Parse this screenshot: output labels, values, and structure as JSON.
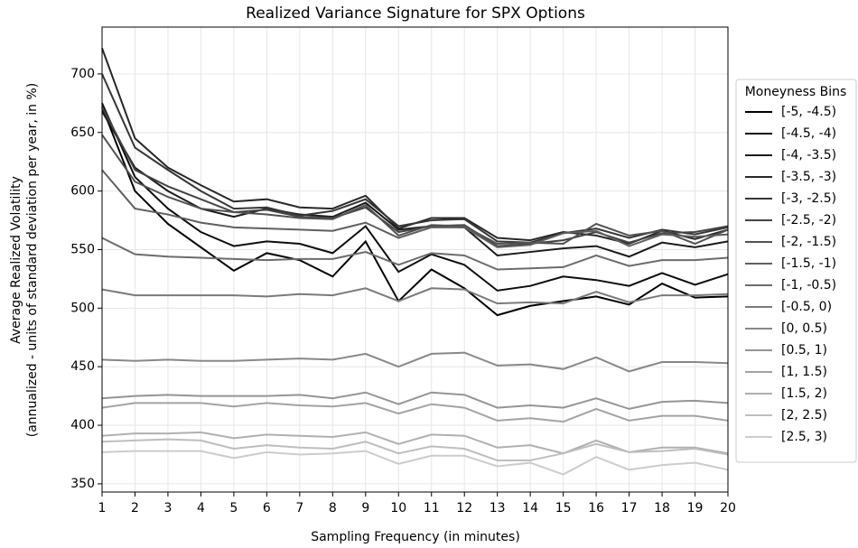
{
  "chart_data": {
    "type": "line",
    "title": "Realized Variance Signature for SPX Options",
    "xlabel": "Sampling Frequency (in minutes)",
    "ylabel": [
      "Average Realized Volatility",
      "(annualized - units of standard deviation per year, in %)"
    ],
    "legend_title": "Moneyness Bins",
    "legend": "right",
    "grid": true,
    "x": [
      1,
      2,
      3,
      4,
      5,
      6,
      7,
      8,
      9,
      10,
      11,
      12,
      13,
      14,
      15,
      16,
      17,
      18,
      19,
      20
    ],
    "xlim": [
      1,
      20
    ],
    "xticks": [
      1,
      2,
      3,
      4,
      5,
      6,
      7,
      8,
      9,
      10,
      11,
      12,
      13,
      14,
      15,
      16,
      17,
      18,
      19,
      20
    ],
    "ylim": [
      343,
      740
    ],
    "yticks": [
      350,
      400,
      450,
      500,
      550,
      600,
      650,
      700
    ],
    "series": [
      {
        "name": "[-5, -4.5)",
        "color": "#000000",
        "values": [
          672,
          600,
          572,
          552,
          532,
          547,
          541,
          527,
          557,
          506,
          533,
          517,
          494,
          502,
          506,
          510,
          503,
          521,
          509,
          510
        ]
      },
      {
        "name": "[-4.5, -4)",
        "color": "#0d0d0d",
        "values": [
          675,
          612,
          585,
          565,
          553,
          557,
          555,
          547,
          570,
          531,
          546,
          537,
          515,
          519,
          527,
          524,
          519,
          530,
          520,
          529
        ]
      },
      {
        "name": "[-4, -3.5)",
        "color": "#1b1b1b",
        "values": [
          668,
          620,
          600,
          585,
          578,
          585,
          580,
          578,
          590,
          567,
          570,
          569,
          545,
          548,
          551,
          553,
          544,
          556,
          552,
          557
        ]
      },
      {
        "name": "[-3.5, -3)",
        "color": "#282828",
        "values": [
          722,
          645,
          620,
          605,
          591,
          593,
          586,
          585,
          596,
          568,
          577,
          577,
          560,
          558,
          565,
          562,
          555,
          566,
          559,
          567
        ]
      },
      {
        "name": "[-3, -2.5)",
        "color": "#363636",
        "values": [
          700,
          637,
          618,
          600,
          585,
          586,
          579,
          583,
          593,
          570,
          575,
          576,
          557,
          556,
          564,
          568,
          560,
          567,
          563,
          569
        ]
      },
      {
        "name": "[-2.5, -2)",
        "color": "#444444",
        "values": [
          672,
          618,
          604,
          593,
          582,
          584,
          578,
          577,
          586,
          565,
          570,
          571,
          553,
          555,
          558,
          565,
          556,
          564,
          565,
          570
        ]
      },
      {
        "name": "[-2, -1.5)",
        "color": "#515151",
        "values": [
          648,
          608,
          595,
          585,
          582,
          580,
          577,
          576,
          588,
          562,
          571,
          570,
          555,
          556,
          555,
          572,
          562,
          566,
          555,
          567
        ]
      },
      {
        "name": "[-1.5, -1)",
        "color": "#5f5f5f",
        "values": [
          618,
          585,
          580,
          573,
          569,
          568,
          567,
          566,
          573,
          560,
          569,
          569,
          552,
          554,
          564,
          566,
          553,
          563,
          561,
          563
        ]
      },
      {
        "name": "[-1, -0.5)",
        "color": "#6c6c6c",
        "values": [
          560,
          546,
          544,
          543,
          542,
          541,
          542,
          542,
          548,
          537,
          547,
          545,
          533,
          534,
          535,
          545,
          536,
          541,
          541,
          543
        ]
      },
      {
        "name": "[-0.5, 0)",
        "color": "#7a7a7a",
        "values": [
          516,
          511,
          511,
          511,
          511,
          510,
          512,
          511,
          517,
          506,
          517,
          516,
          504,
          505,
          504,
          514,
          505,
          511,
          511,
          512
        ]
      },
      {
        "name": "[0, 0.5)",
        "color": "#888888",
        "values": [
          456,
          455,
          456,
          455,
          455,
          456,
          457,
          456,
          461,
          450,
          461,
          462,
          451,
          452,
          448,
          458,
          446,
          454,
          454,
          453
        ]
      },
      {
        "name": "[0.5, 1)",
        "color": "#959595",
        "values": [
          423,
          425,
          426,
          425,
          425,
          425,
          426,
          423,
          428,
          418,
          428,
          426,
          415,
          417,
          415,
          423,
          414,
          420,
          421,
          419
        ]
      },
      {
        "name": "[1, 1.5)",
        "color": "#a3a3a3",
        "values": [
          415,
          419,
          419,
          419,
          416,
          419,
          417,
          416,
          419,
          410,
          418,
          415,
          404,
          406,
          403,
          414,
          404,
          408,
          408,
          404
        ]
      },
      {
        "name": "[1.5, 2)",
        "color": "#b0b0b0",
        "values": [
          391,
          393,
          393,
          394,
          389,
          392,
          391,
          390,
          394,
          384,
          392,
          391,
          381,
          383,
          376,
          387,
          377,
          381,
          381,
          376
        ]
      },
      {
        "name": "[2, 2.5)",
        "color": "#bebebe",
        "values": [
          386,
          387,
          388,
          387,
          380,
          383,
          381,
          380,
          386,
          376,
          382,
          380,
          370,
          370,
          376,
          384,
          377,
          378,
          380,
          375
        ]
      },
      {
        "name": "[2.5, 3)",
        "color": "#cccccc",
        "values": [
          377,
          378,
          378,
          378,
          372,
          377,
          375,
          376,
          378,
          367,
          374,
          374,
          365,
          368,
          358,
          373,
          362,
          366,
          368,
          362
        ]
      }
    ]
  }
}
